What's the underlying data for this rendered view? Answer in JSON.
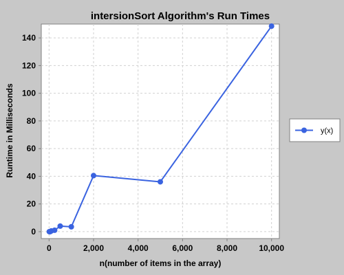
{
  "chart_data": {
    "type": "line",
    "title": "intersionSort Algorithm's Run Times",
    "xlabel": "n(number of items in the array)",
    "ylabel": "Runtime in Milliseconds",
    "xlim": [
      -350,
      10350
    ],
    "ylim": [
      -5,
      150
    ],
    "x_ticks": [
      0,
      2000,
      4000,
      6000,
      8000,
      10000
    ],
    "x_tick_labels": [
      "0",
      "2,000",
      "4,000",
      "6,000",
      "8,000",
      "10,000"
    ],
    "y_ticks": [
      0,
      20,
      40,
      60,
      80,
      100,
      120,
      140
    ],
    "y_tick_labels": [
      "0",
      "20",
      "40",
      "60",
      "80",
      "100",
      "120",
      "140"
    ],
    "grid": true,
    "legend_position": "right",
    "series": [
      {
        "name": "y(x)",
        "color": "#3a63e0",
        "x": [
          10,
          50,
          100,
          250,
          500,
          1000,
          2000,
          5000,
          10000
        ],
        "y": [
          0,
          0,
          0.5,
          1,
          4,
          3.5,
          40.5,
          36,
          148.5
        ]
      }
    ]
  },
  "colors": {
    "background": "#c8c8c8",
    "plot_background": "#ffffff",
    "grid": "#d0d0d0",
    "series": "#3a63e0"
  }
}
